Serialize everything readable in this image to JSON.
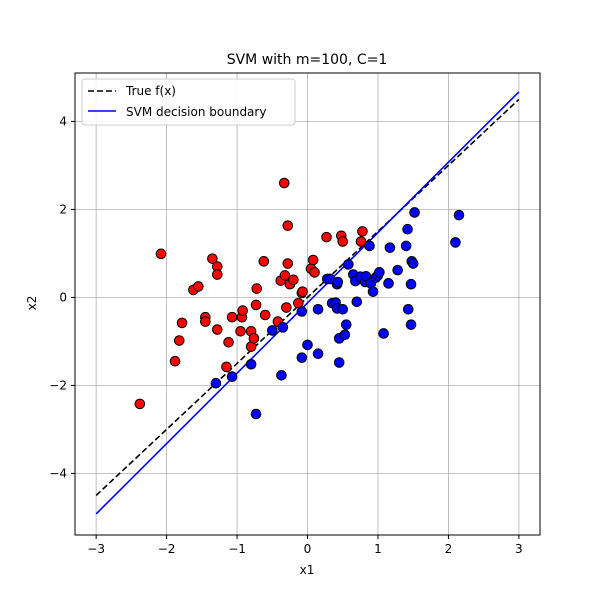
{
  "chart_data": {
    "type": "scatter",
    "title": "SVM with m=100, C=1",
    "xlabel": "x1",
    "ylabel": "x2",
    "xlim": [
      -3.3,
      3.3
    ],
    "ylim": [
      -5.4,
      5.1
    ],
    "x_ticks": [
      -3,
      -2,
      -1,
      0,
      1,
      2,
      3
    ],
    "y_ticks": [
      -4,
      -2,
      0,
      2,
      4
    ],
    "grid": true,
    "legend_position": "top-left",
    "lines": [
      {
        "name": "True f(x)",
        "style": "dashed",
        "color": "#000000",
        "x": [
          -3,
          3
        ],
        "y": [
          -4.5,
          4.5
        ]
      },
      {
        "name": "SVM decision boundary",
        "style": "solid",
        "color": "#0000ff",
        "x": [
          -3,
          3
        ],
        "y": [
          -4.92,
          4.67
        ]
      }
    ],
    "series": [
      {
        "class": "red",
        "color": "#ff0000",
        "points": [
          [
            -2.38,
            -2.42
          ],
          [
            -2.08,
            0.99
          ],
          [
            -1.88,
            -1.45
          ],
          [
            -1.82,
            -0.98
          ],
          [
            -1.78,
            -0.58
          ],
          [
            -1.62,
            0.17
          ],
          [
            -1.55,
            0.25
          ],
          [
            -1.45,
            -0.45
          ],
          [
            -1.45,
            -0.55
          ],
          [
            -1.35,
            0.88
          ],
          [
            -1.28,
            0.7
          ],
          [
            -1.28,
            0.52
          ],
          [
            -1.28,
            -0.73
          ],
          [
            -1.15,
            -1.58
          ],
          [
            -1.12,
            -1.02
          ],
          [
            -1.07,
            -0.45
          ],
          [
            -0.95,
            -0.77
          ],
          [
            -0.93,
            -0.45
          ],
          [
            -0.92,
            -0.3
          ],
          [
            -0.8,
            -0.77
          ],
          [
            -0.8,
            -1.12
          ],
          [
            -0.76,
            -0.93
          ],
          [
            -0.73,
            -0.17
          ],
          [
            -0.72,
            0.2
          ],
          [
            -0.62,
            0.82
          ],
          [
            -0.6,
            -0.4
          ],
          [
            -0.42,
            -0.55
          ],
          [
            -0.38,
            0.38
          ],
          [
            -0.33,
            2.6
          ],
          [
            -0.32,
            0.5
          ],
          [
            -0.3,
            -0.23
          ],
          [
            -0.28,
            0.77
          ],
          [
            -0.28,
            1.63
          ],
          [
            -0.25,
            0.3
          ],
          [
            -0.2,
            0.4
          ],
          [
            -0.13,
            -0.13
          ],
          [
            -0.08,
            0.1
          ],
          [
            -0.07,
            0.13
          ],
          [
            0.05,
            0.65
          ],
          [
            0.08,
            0.85
          ],
          [
            0.1,
            0.57
          ],
          [
            0.27,
            1.37
          ],
          [
            0.48,
            1.4
          ],
          [
            0.5,
            1.27
          ],
          [
            0.76,
            1.27
          ],
          [
            0.78,
            1.5
          ]
        ]
      },
      {
        "class": "blue",
        "color": "#0000ff",
        "points": [
          [
            -1.3,
            -1.95
          ],
          [
            -1.07,
            -1.8
          ],
          [
            -0.8,
            -1.52
          ],
          [
            -0.73,
            -2.65
          ],
          [
            -0.5,
            -0.75
          ],
          [
            -0.37,
            -1.77
          ],
          [
            -0.35,
            -0.68
          ],
          [
            -0.08,
            -0.32
          ],
          [
            -0.08,
            -1.37
          ],
          [
            0.0,
            -1.08
          ],
          [
            0.15,
            -0.27
          ],
          [
            0.15,
            -1.28
          ],
          [
            0.28,
            0.42
          ],
          [
            0.32,
            0.42
          ],
          [
            0.35,
            -0.13
          ],
          [
            0.4,
            -0.12
          ],
          [
            0.42,
            -0.25
          ],
          [
            0.42,
            0.3
          ],
          [
            0.43,
            0.35
          ],
          [
            0.45,
            -1.48
          ],
          [
            0.45,
            -0.93
          ],
          [
            0.5,
            -0.27
          ],
          [
            0.53,
            -0.85
          ],
          [
            0.55,
            -0.62
          ],
          [
            0.58,
            0.75
          ],
          [
            0.65,
            0.52
          ],
          [
            0.68,
            0.37
          ],
          [
            0.7,
            -0.1
          ],
          [
            0.75,
            0.47
          ],
          [
            0.82,
            0.35
          ],
          [
            0.83,
            0.48
          ],
          [
            0.88,
            1.17
          ],
          [
            0.9,
            0.32
          ],
          [
            0.93,
            0.13
          ],
          [
            0.97,
            0.45
          ],
          [
            1.0,
            0.5
          ],
          [
            1.02,
            0.57
          ],
          [
            1.08,
            -0.82
          ],
          [
            1.15,
            0.32
          ],
          [
            1.17,
            1.13
          ],
          [
            1.28,
            0.62
          ],
          [
            1.4,
            1.17
          ],
          [
            1.42,
            1.55
          ],
          [
            1.43,
            -0.27
          ],
          [
            1.47,
            0.3
          ],
          [
            1.47,
            -0.62
          ],
          [
            1.48,
            0.82
          ],
          [
            1.5,
            0.77
          ],
          [
            1.52,
            1.93
          ],
          [
            2.1,
            1.25
          ],
          [
            2.15,
            1.87
          ]
        ]
      }
    ]
  }
}
